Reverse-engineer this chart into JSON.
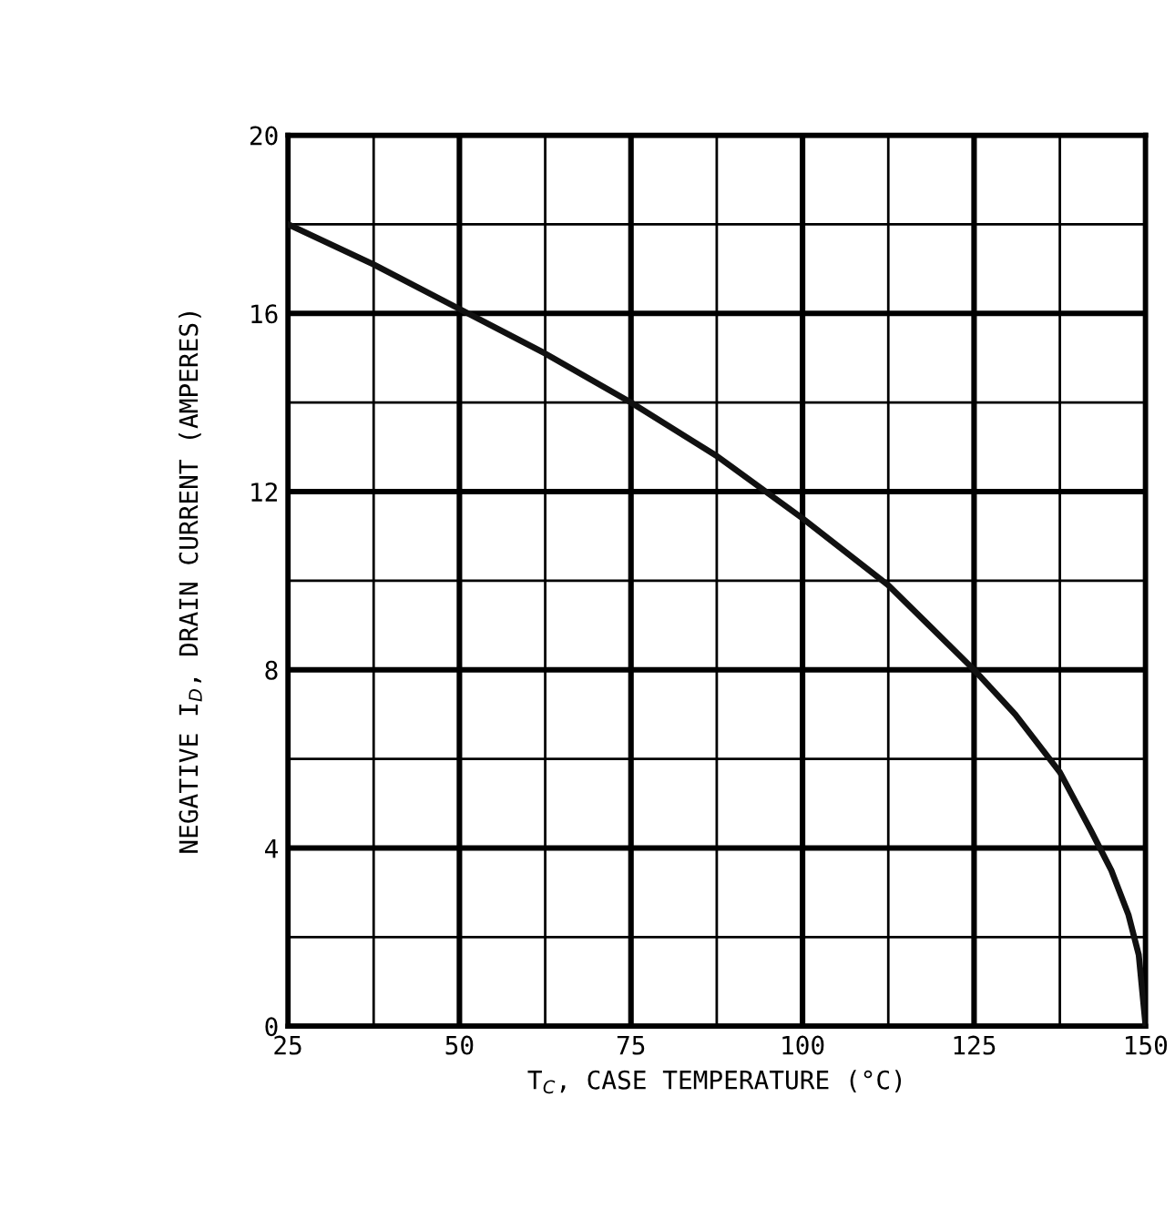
{
  "chart_data": {
    "type": "line",
    "xlabel": "T$_{C}$, CASE TEMPERATURE (°C)",
    "ylabel": "NEGATIVE I$_{D}$, DRAIN CURRENT (AMPERES)",
    "series": [
      {
        "color": "#111111",
        "x": [
          25,
          37.5,
          50,
          62.5,
          75,
          87.5,
          100,
          112.5,
          125,
          131,
          137.5,
          142,
          145,
          147.5,
          149,
          150
        ],
        "values": [
          18,
          17.1,
          16.1,
          15.1,
          14,
          12.8,
          11.4,
          9.9,
          8,
          7,
          5.7,
          4.4,
          3.5,
          2.5,
          1.6,
          0
        ]
      }
    ],
    "xlim": [
      25,
      150
    ],
    "ylim": [
      0,
      20
    ],
    "xticks": [
      25,
      {
        "value": 37.5,
        "label": null
      },
      50,
      {
        "value": 62.5,
        "label": null
      },
      75,
      {
        "value": 87.5,
        "label": null
      },
      100,
      {
        "value": 112.5,
        "label": null
      },
      125,
      {
        "value": 137.5,
        "label": null
      },
      150
    ],
    "yticks": [
      0,
      {
        "value": 2,
        "label": null
      },
      4,
      {
        "value": 6,
        "label": null
      },
      8,
      {
        "value": 10,
        "label": null
      },
      12,
      {
        "value": 14,
        "label": null
      },
      16,
      {
        "value": 18,
        "label": null
      },
      20
    ],
    "grid": true,
    "legend": false,
    "marker": "none",
    "line_style": "solid"
  }
}
